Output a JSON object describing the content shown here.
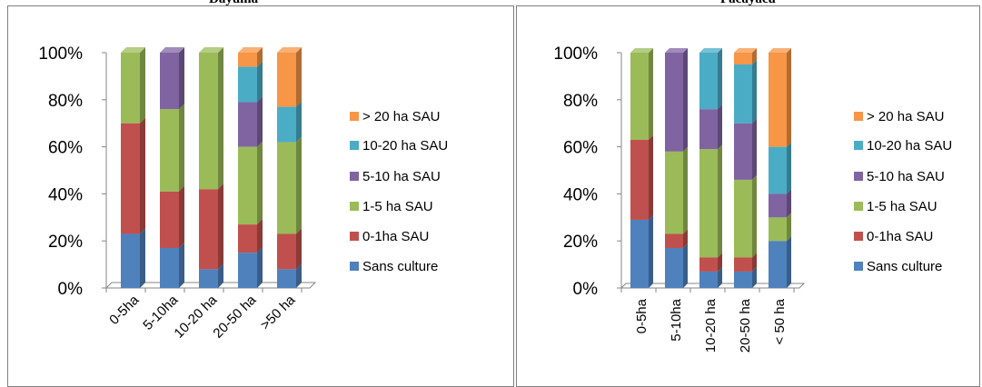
{
  "chart_data": [
    {
      "type": "bar",
      "stacked": true,
      "percent": true,
      "title": "Dayuma",
      "categories": [
        "0-5ha",
        "5-10ha",
        "10-20 ha",
        "20-50 ha",
        ">50 ha"
      ],
      "ylim": [
        0,
        100
      ],
      "yticks": [
        "0%",
        "20%",
        "40%",
        "60%",
        "80%",
        "100%"
      ],
      "legend_position": "right",
      "grid": false,
      "series": [
        {
          "name": "Sans culture",
          "color": "#4f81bd",
          "values": [
            23,
            17,
            8,
            15,
            8
          ]
        },
        {
          "name": "0-1ha SAU",
          "color": "#c0504d",
          "values": [
            47,
            24,
            34,
            12,
            15
          ]
        },
        {
          "name": "1-5 ha SAU",
          "color": "#9bbb59",
          "values": [
            30,
            35,
            58,
            33,
            39
          ]
        },
        {
          "name": "5-10 ha SAU",
          "color": "#8064a2",
          "values": [
            0,
            24,
            0,
            19,
            0
          ]
        },
        {
          "name": "10-20 ha SAU",
          "color": "#4bacc6",
          "values": [
            0,
            0,
            0,
            15,
            15
          ]
        },
        {
          "name": "> 20 ha SAU",
          "color": "#f79646",
          "values": [
            0,
            0,
            0,
            6,
            23
          ]
        }
      ]
    },
    {
      "type": "bar",
      "stacked": true,
      "percent": true,
      "title": "Pacayacu",
      "categories": [
        "0-5ha",
        "5-10ha",
        "10-20 ha",
        "20-50 ha",
        "< 50 ha"
      ],
      "ylim": [
        0,
        100
      ],
      "yticks": [
        "0%",
        "20%",
        "40%",
        "60%",
        "80%",
        "100%"
      ],
      "legend_position": "right",
      "grid": false,
      "series": [
        {
          "name": "Sans culture",
          "color": "#4f81bd",
          "values": [
            29,
            17,
            7,
            7,
            20
          ]
        },
        {
          "name": "0-1ha SAU",
          "color": "#c0504d",
          "values": [
            34,
            6,
            6,
            6,
            0
          ]
        },
        {
          "name": "1-5 ha SAU",
          "color": "#9bbb59",
          "values": [
            37,
            35,
            46,
            33,
            10
          ]
        },
        {
          "name": "5-10 ha SAU",
          "color": "#8064a2",
          "values": [
            0,
            42,
            17,
            24,
            10
          ]
        },
        {
          "name": "10-20 ha SAU",
          "color": "#4bacc6",
          "values": [
            0,
            0,
            24,
            25,
            20
          ]
        },
        {
          "name": "> 20 ha SAU",
          "color": "#f79646",
          "values": [
            0,
            0,
            0,
            5,
            40
          ]
        }
      ]
    }
  ]
}
